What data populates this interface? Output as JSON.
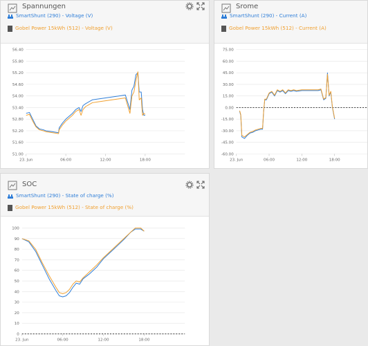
{
  "colors": {
    "blue": "#2f7ed8",
    "orange": "#f0a030",
    "grid": "#e4e4e4"
  },
  "panels": {
    "voltage": {
      "title": "Spannungen",
      "legend": [
        {
          "icon": "shunt-icon",
          "label": "SmartShunt (290) - Voltage (V)"
        },
        {
          "icon": "battery-icon",
          "label": "Gobel Power 15kWh (512) - Voltage (V)"
        }
      ]
    },
    "current": {
      "title": "Srome",
      "legend": [
        {
          "icon": "shunt-icon",
          "label": "SmartShunt (290) - Current (A)"
        },
        {
          "icon": "battery-icon",
          "label": "Gobel Power 15kWh (512) - Current (A)"
        }
      ]
    },
    "soc": {
      "title": "SOC",
      "legend": [
        {
          "icon": "shunt-icon",
          "label": "SmartShunt (290) - State of charge (%)"
        },
        {
          "icon": "battery-icon",
          "label": "Gobel Power 15kWh (512) - State of charge (%)"
        }
      ]
    }
  },
  "chart_data": [
    {
      "type": "line",
      "xlim": [
        0,
        24
      ],
      "xticks": [
        "23. Jun",
        "06:00",
        "12:00",
        "18:00"
      ],
      "xtick_values": [
        0,
        6,
        12,
        18
      ],
      "ylim": [
        51.0,
        56.4
      ],
      "yticks": [
        "51.00",
        "51.60",
        "52.20",
        "52.80",
        "53.40",
        "54.00",
        "54.60",
        "55.20",
        "55.80",
        "56.40"
      ],
      "series": [
        {
          "name": "SmartShunt (290) - Voltage (V)",
          "x": [
            0,
            0.5,
            1,
            1.5,
            2,
            2.6,
            3,
            4,
            4.9,
            5,
            5.5,
            6,
            7,
            7.5,
            8,
            8.3,
            8.6,
            9,
            10,
            11,
            12,
            13,
            14,
            15,
            15.7,
            16,
            16.3,
            16.6,
            16.9,
            17.1,
            17.4,
            17.6,
            17.8,
            18
          ],
          "values": [
            53.1,
            53.15,
            52.8,
            52.45,
            52.3,
            52.25,
            52.2,
            52.15,
            52.1,
            52.35,
            52.6,
            52.8,
            53.1,
            53.3,
            53.4,
            53.2,
            53.5,
            53.6,
            53.8,
            53.85,
            53.9,
            53.95,
            54.0,
            54.05,
            53.3,
            54.3,
            54.5,
            55.1,
            55.2,
            54.2,
            54.2,
            53.3,
            53.0,
            53.0
          ]
        },
        {
          "name": "Gobel Power 15kWh (512) - Voltage (V)",
          "x": [
            0,
            0.5,
            1,
            1.5,
            2,
            2.6,
            3,
            4,
            4.9,
            5,
            5.5,
            6,
            7,
            7.5,
            8,
            8.3,
            8.6,
            9,
            10,
            11,
            12,
            13,
            14,
            15,
            15.7,
            16,
            16.3,
            16.6,
            16.9,
            17.1,
            17.4,
            17.6,
            17.8,
            18
          ],
          "values": [
            53.0,
            53.05,
            52.7,
            52.4,
            52.25,
            52.2,
            52.15,
            52.1,
            52.05,
            52.25,
            52.5,
            52.7,
            53.0,
            53.2,
            53.3,
            53.0,
            53.3,
            53.45,
            53.65,
            53.7,
            53.75,
            53.8,
            53.85,
            53.9,
            53.1,
            54.0,
            54.2,
            54.8,
            55.25,
            53.8,
            53.9,
            53.0,
            53.1,
            53.05
          ]
        }
      ]
    },
    {
      "type": "line",
      "xlim": [
        0,
        24
      ],
      "xticks": [
        "23. Jun",
        "06:00",
        "12:00",
        "18:00"
      ],
      "xtick_values": [
        0,
        6,
        12,
        18
      ],
      "ylim": [
        -60,
        75
      ],
      "yticks": [
        "-60.00",
        "-45.00",
        "-30.00",
        "-15.00",
        "0.00",
        "15.00",
        "30.00",
        "45.00",
        "60.00",
        "75.00"
      ],
      "zero_line": true,
      "series": [
        {
          "name": "SmartShunt (290) - Current (A)",
          "x": [
            0.6,
            0.8,
            1,
            1.5,
            2,
            2.5,
            3,
            3.5,
            4,
            4.5,
            4.8,
            5,
            5.2,
            5.5,
            6,
            6.5,
            7,
            7.5,
            8,
            8.5,
            9,
            9.5,
            10,
            10.5,
            11,
            12,
            13,
            14,
            15,
            15.5,
            16,
            16.4,
            16.7,
            17,
            17.3,
            17.6,
            18
          ],
          "values": [
            -5,
            -10,
            -38,
            -40,
            -36,
            -33,
            -32,
            -30,
            -29,
            -28,
            -28,
            -5,
            10,
            10,
            18,
            20,
            15,
            22,
            20,
            22,
            18,
            22,
            21,
            22,
            21,
            22,
            22,
            22,
            22,
            23,
            10,
            12,
            45,
            15,
            20,
            0,
            -15
          ]
        },
        {
          "name": "Gobel Power 15kWh (512) - Current (A)",
          "x": [
            0.6,
            0.8,
            1,
            1.5,
            2,
            2.5,
            3,
            3.5,
            4,
            4.5,
            4.8,
            5,
            5.2,
            5.5,
            6,
            6.5,
            7,
            7.5,
            8,
            8.5,
            9,
            9.5,
            10,
            10.5,
            11,
            12,
            13,
            14,
            15,
            15.5,
            16,
            16.4,
            16.7,
            17,
            17.3,
            17.6,
            18
          ],
          "values": [
            -4,
            -9,
            -36,
            -38,
            -35,
            -32,
            -31,
            -29,
            -28,
            -27,
            -27,
            -4,
            11,
            11,
            19,
            21,
            16,
            23,
            21,
            23,
            19,
            23,
            22,
            23,
            22,
            23,
            23,
            23,
            23,
            24,
            11,
            13,
            43,
            16,
            21,
            1,
            -14
          ]
        }
      ]
    },
    {
      "type": "line",
      "xlim": [
        0,
        24
      ],
      "xticks": [
        "23. Jun",
        "06:00",
        "12:00",
        "18:00"
      ],
      "xtick_values": [
        0,
        6,
        12,
        18
      ],
      "ylim": [
        0,
        100
      ],
      "yticks": [
        "0",
        "10",
        "20",
        "30",
        "40",
        "50",
        "60",
        "70",
        "80",
        "90",
        "100"
      ],
      "zero_line": true,
      "series": [
        {
          "name": "SmartShunt (290) - State of charge (%)",
          "x": [
            0,
            1,
            2,
            3,
            4,
            5,
            5.5,
            6,
            6.5,
            7,
            7.5,
            8,
            8.5,
            9,
            10,
            11,
            12,
            13,
            14,
            15,
            16,
            16.7,
            17,
            17.5,
            18
          ],
          "values": [
            90,
            87,
            78,
            65,
            52,
            41,
            36,
            35,
            36,
            39,
            44,
            48,
            47,
            52,
            57,
            63,
            71,
            77,
            83,
            89,
            96,
            99,
            99,
            99,
            97
          ]
        },
        {
          "name": "Gobel Power 15kWh (512) - State of charge (%)",
          "x": [
            0,
            1,
            2,
            3,
            4,
            5,
            5.5,
            6,
            6.5,
            7,
            7.5,
            8,
            8.5,
            9,
            10,
            11,
            12,
            13,
            14,
            15,
            16,
            16.7,
            17,
            17.5,
            18
          ],
          "values": [
            90,
            88,
            80,
            67,
            55,
            44,
            39,
            38,
            39,
            42,
            47,
            50,
            49,
            53,
            59,
            65,
            72,
            78,
            84,
            90,
            96,
            100,
            100,
            100,
            97
          ]
        }
      ]
    }
  ]
}
